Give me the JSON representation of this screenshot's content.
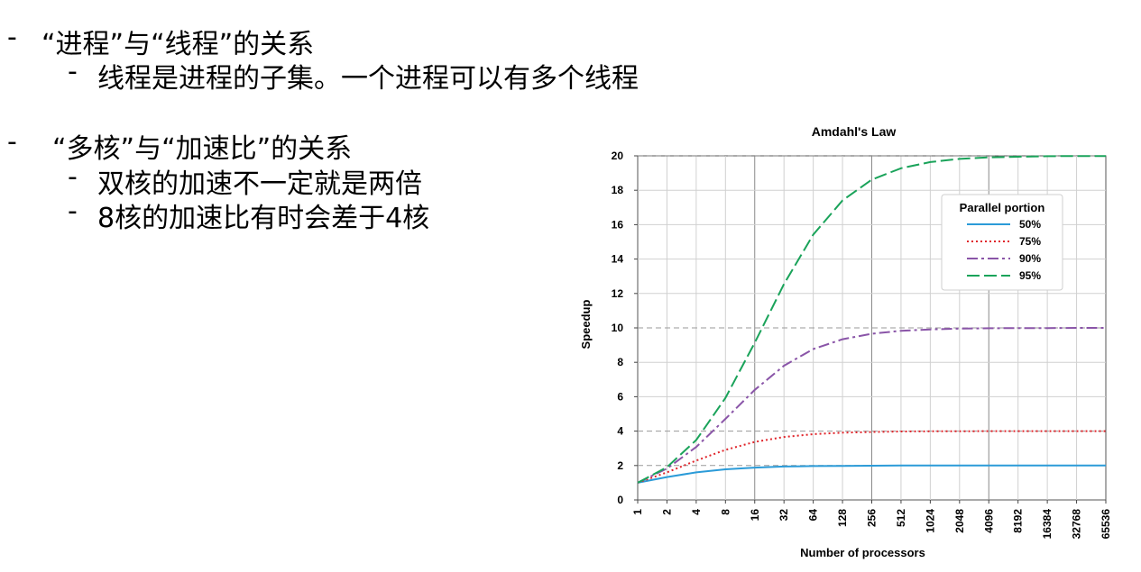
{
  "slide": {
    "bullets": [
      {
        "dash": "-",
        "text": "“进程”与“线程”的关系",
        "sub": [
          {
            "dash": "-",
            "text": "线程是进程的子集。一个进程可以有多个线程"
          }
        ]
      },
      {
        "dash": "-",
        "text": "“多核”与“加速比”的关系",
        "sub": [
          {
            "dash": "-",
            "text": "双核的加速不一定就是两倍"
          },
          {
            "dash": "-",
            "text": "8核的加速比有时会差于4核"
          }
        ]
      }
    ]
  },
  "chart_data": {
    "type": "line",
    "title": "Amdahl's Law",
    "xlabel": "Number of processors",
    "ylabel": "Speedup",
    "x": [
      1,
      2,
      4,
      8,
      16,
      32,
      64,
      128,
      256,
      512,
      1024,
      2048,
      4096,
      8192,
      16384,
      32768,
      65536
    ],
    "x_scale": "log2",
    "ylim": [
      0,
      20
    ],
    "yticks": [
      0,
      2,
      4,
      6,
      8,
      10,
      12,
      14,
      16,
      18,
      20
    ],
    "grid": true,
    "legend": {
      "title": "Parallel portion",
      "position": "top-right"
    },
    "series": [
      {
        "name": "50%",
        "color": "#2b9bd8",
        "style": "solid",
        "values": [
          1.0,
          1.33,
          1.6,
          1.78,
          1.88,
          1.94,
          1.97,
          1.98,
          1.99,
          2.0,
          2.0,
          2.0,
          2.0,
          2.0,
          2.0,
          2.0,
          2.0
        ]
      },
      {
        "name": "75%",
        "color": "#e0242a",
        "style": "dotted",
        "values": [
          1.0,
          1.6,
          2.29,
          2.91,
          3.37,
          3.66,
          3.82,
          3.91,
          3.95,
          3.98,
          3.99,
          3.99,
          4.0,
          4.0,
          4.0,
          4.0,
          4.0
        ]
      },
      {
        "name": "90%",
        "color": "#8a55a8",
        "style": "dashdot",
        "values": [
          1.0,
          1.82,
          3.08,
          4.71,
          6.4,
          7.8,
          8.77,
          9.34,
          9.66,
          9.83,
          9.91,
          9.96,
          9.98,
          9.99,
          9.99,
          10.0,
          10.0
        ]
      },
      {
        "name": "95%",
        "color": "#1aa35a",
        "style": "dashed",
        "values": [
          1.0,
          1.9,
          3.48,
          5.93,
          9.14,
          12.55,
          15.42,
          17.41,
          18.62,
          19.28,
          19.64,
          19.82,
          19.91,
          19.95,
          19.98,
          19.99,
          19.99
        ]
      }
    ]
  }
}
